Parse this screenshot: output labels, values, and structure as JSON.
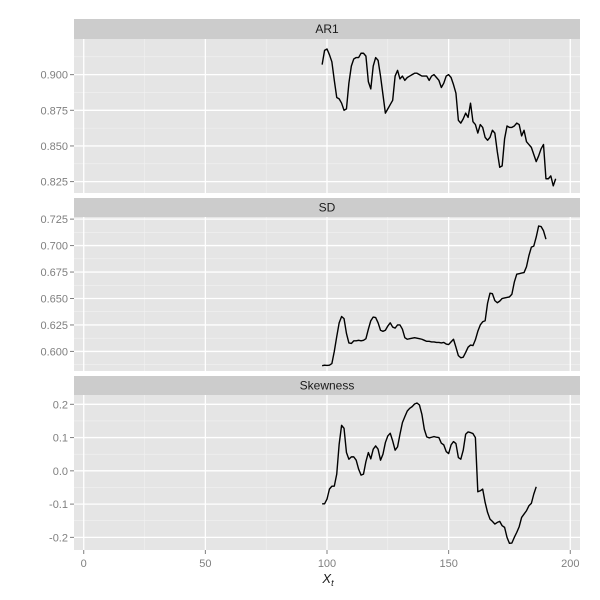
{
  "chart_data": {
    "type": "line",
    "xlabel": "X",
    "xlabel_sub": "t",
    "ylabel": "",
    "xlim": [
      -4,
      204
    ],
    "x_ticks": [
      0,
      50,
      100,
      150,
      200
    ],
    "x_tick_labels": [
      "0",
      "50",
      "100",
      "150",
      "200"
    ],
    "grid": true,
    "facets": [
      {
        "title": "AR1",
        "ylim": [
          0.817,
          0.925
        ],
        "y_ticks": [
          0.825,
          0.85,
          0.875,
          0.9
        ],
        "y_tick_labels": [
          "0.825",
          "0.850",
          "0.875",
          "0.900"
        ],
        "points": [
          [
            98,
            0.907
          ],
          [
            99,
            0.917
          ],
          [
            100,
            0.918
          ],
          [
            101,
            0.914
          ],
          [
            102,
            0.909
          ],
          [
            103,
            0.896
          ],
          [
            104,
            0.884
          ],
          [
            105,
            0.883
          ],
          [
            106,
            0.88
          ],
          [
            107,
            0.875
          ],
          [
            108,
            0.876
          ],
          [
            109,
            0.894
          ],
          [
            110,
            0.906
          ],
          [
            111,
            0.911
          ],
          [
            112,
            0.912
          ],
          [
            113,
            0.912
          ],
          [
            114,
            0.915
          ],
          [
            115,
            0.915
          ],
          [
            116,
            0.913
          ],
          [
            117,
            0.895
          ],
          [
            118,
            0.89
          ],
          [
            119,
            0.906
          ],
          [
            120,
            0.912
          ],
          [
            121,
            0.91
          ],
          [
            122,
            0.899
          ],
          [
            123,
            0.886
          ],
          [
            124,
            0.873
          ],
          [
            125,
            0.876
          ],
          [
            126,
            0.879
          ],
          [
            127,
            0.882
          ],
          [
            128,
            0.899
          ],
          [
            129,
            0.903
          ],
          [
            130,
            0.897
          ],
          [
            131,
            0.899
          ],
          [
            132,
            0.896
          ],
          [
            133,
            0.898
          ],
          [
            134,
            0.899
          ],
          [
            135,
            0.9
          ],
          [
            136,
            0.901
          ],
          [
            137,
            0.901
          ],
          [
            138,
            0.9
          ],
          [
            139,
            0.899
          ],
          [
            140,
            0.899
          ],
          [
            141,
            0.899
          ],
          [
            142,
            0.896
          ],
          [
            143,
            0.899
          ],
          [
            144,
            0.9
          ],
          [
            145,
            0.898
          ],
          [
            146,
            0.896
          ],
          [
            147,
            0.891
          ],
          [
            148,
            0.894
          ],
          [
            149,
            0.899
          ],
          [
            150,
            0.9
          ],
          [
            151,
            0.898
          ],
          [
            152,
            0.893
          ],
          [
            153,
            0.887
          ],
          [
            154,
            0.868
          ],
          [
            155,
            0.866
          ],
          [
            156,
            0.869
          ],
          [
            157,
            0.873
          ],
          [
            158,
            0.87
          ],
          [
            159,
            0.88
          ],
          [
            160,
            0.867
          ],
          [
            161,
            0.865
          ],
          [
            162,
            0.859
          ],
          [
            163,
            0.865
          ],
          [
            164,
            0.863
          ],
          [
            165,
            0.856
          ],
          [
            166,
            0.854
          ],
          [
            167,
            0.856
          ],
          [
            168,
            0.861
          ],
          [
            169,
            0.859
          ],
          [
            170,
            0.846
          ],
          [
            171,
            0.835
          ],
          [
            172,
            0.836
          ],
          [
            173,
            0.855
          ],
          [
            174,
            0.864
          ],
          [
            175,
            0.863
          ],
          [
            176,
            0.863
          ],
          [
            177,
            0.864
          ],
          [
            178,
            0.866
          ],
          [
            179,
            0.865
          ],
          [
            180,
            0.857
          ],
          [
            181,
            0.861
          ],
          [
            182,
            0.853
          ],
          [
            183,
            0.851
          ],
          [
            184,
            0.849
          ],
          [
            185,
            0.844
          ],
          [
            186,
            0.839
          ],
          [
            187,
            0.843
          ],
          [
            188,
            0.848
          ],
          [
            189,
            0.851
          ],
          [
            190,
            0.827
          ],
          [
            191,
            0.827
          ],
          [
            192,
            0.829
          ],
          [
            193,
            0.822
          ],
          [
            194,
            0.827
          ]
        ]
      },
      {
        "title": "SD",
        "ylim": [
          0.5815,
          0.727
        ],
        "y_ticks": [
          0.6,
          0.625,
          0.65,
          0.675,
          0.7,
          0.725
        ],
        "y_tick_labels": [
          "0.600",
          "0.625",
          "0.650",
          "0.675",
          "0.700",
          "0.725"
        ],
        "points": [
          [
            98,
            0.5865
          ],
          [
            99,
            0.587
          ],
          [
            100,
            0.5868
          ],
          [
            101,
            0.587
          ],
          [
            102,
            0.5885
          ],
          [
            103,
            0.6
          ],
          [
            104,
            0.614
          ],
          [
            105,
            0.627
          ],
          [
            106,
            0.633
          ],
          [
            107,
            0.631
          ],
          [
            108,
            0.617
          ],
          [
            109,
            0.608
          ],
          [
            110,
            0.6075
          ],
          [
            111,
            0.61
          ],
          [
            112,
            0.61
          ],
          [
            113,
            0.6105
          ],
          [
            114,
            0.61
          ],
          [
            115,
            0.6105
          ],
          [
            116,
            0.612
          ],
          [
            117,
            0.621
          ],
          [
            118,
            0.629
          ],
          [
            119,
            0.6325
          ],
          [
            120,
            0.632
          ],
          [
            121,
            0.627
          ],
          [
            122,
            0.62
          ],
          [
            123,
            0.619
          ],
          [
            124,
            0.62
          ],
          [
            125,
            0.624
          ],
          [
            126,
            0.627
          ],
          [
            127,
            0.623
          ],
          [
            128,
            0.622
          ],
          [
            129,
            0.625
          ],
          [
            130,
            0.625
          ],
          [
            131,
            0.621
          ],
          [
            132,
            0.613
          ],
          [
            133,
            0.6115
          ],
          [
            134,
            0.612
          ],
          [
            135,
            0.6125
          ],
          [
            136,
            0.613
          ],
          [
            137,
            0.6125
          ],
          [
            138,
            0.612
          ],
          [
            139,
            0.6115
          ],
          [
            140,
            0.6105
          ],
          [
            141,
            0.6095
          ],
          [
            142,
            0.6095
          ],
          [
            143,
            0.609
          ],
          [
            144,
            0.609
          ],
          [
            145,
            0.6085
          ],
          [
            146,
            0.6085
          ],
          [
            147,
            0.608
          ],
          [
            148,
            0.6085
          ],
          [
            149,
            0.607
          ],
          [
            150,
            0.6065
          ],
          [
            151,
            0.609
          ],
          [
            152,
            0.6115
          ],
          [
            153,
            0.604
          ],
          [
            154,
            0.596
          ],
          [
            155,
            0.594
          ],
          [
            156,
            0.5945
          ],
          [
            157,
            0.599
          ],
          [
            158,
            0.604
          ],
          [
            159,
            0.606
          ],
          [
            160,
            0.6055
          ],
          [
            161,
            0.611
          ],
          [
            162,
            0.619
          ],
          [
            163,
            0.625
          ],
          [
            164,
            0.628
          ],
          [
            165,
            0.629
          ],
          [
            166,
            0.6455
          ],
          [
            167,
            0.655
          ],
          [
            168,
            0.6545
          ],
          [
            169,
            0.648
          ],
          [
            170,
            0.646
          ],
          [
            171,
            0.6475
          ],
          [
            172,
            0.65
          ],
          [
            173,
            0.6505
          ],
          [
            174,
            0.651
          ],
          [
            175,
            0.6515
          ],
          [
            176,
            0.654
          ],
          [
            177,
            0.6655
          ],
          [
            178,
            0.673
          ],
          [
            179,
            0.6735
          ],
          [
            180,
            0.674
          ],
          [
            181,
            0.6745
          ],
          [
            182,
            0.68
          ],
          [
            183,
            0.6905
          ],
          [
            184,
            0.6985
          ],
          [
            185,
            0.6995
          ],
          [
            186,
            0.708
          ],
          [
            187,
            0.7185
          ],
          [
            188,
            0.718
          ],
          [
            189,
            0.714
          ],
          [
            190,
            0.706
          ]
        ]
      },
      {
        "title": "Skewness",
        "ylim": [
          -0.238,
          0.228
        ],
        "y_ticks": [
          -0.2,
          -0.1,
          0.0,
          0.1,
          0.2
        ],
        "y_tick_labels": [
          "-0.2",
          "-0.1",
          "0.0",
          "0.1",
          "0.2"
        ],
        "points": [
          [
            98,
            -0.099
          ],
          [
            99,
            -0.099
          ],
          [
            100,
            -0.085
          ],
          [
            101,
            -0.055
          ],
          [
            102,
            -0.046
          ],
          [
            103,
            -0.046
          ],
          [
            104,
            -0.01
          ],
          [
            105,
            0.08
          ],
          [
            106,
            0.137
          ],
          [
            107,
            0.128
          ],
          [
            108,
            0.055
          ],
          [
            109,
            0.035
          ],
          [
            110,
            0.042
          ],
          [
            111,
            0.042
          ],
          [
            112,
            0.032
          ],
          [
            113,
            0.005
          ],
          [
            114,
            -0.013
          ],
          [
            115,
            -0.01
          ],
          [
            116,
            0.028
          ],
          [
            117,
            0.055
          ],
          [
            118,
            0.036
          ],
          [
            119,
            0.065
          ],
          [
            120,
            0.075
          ],
          [
            121,
            0.065
          ],
          [
            122,
            0.032
          ],
          [
            123,
            0.05
          ],
          [
            124,
            0.085
          ],
          [
            125,
            0.105
          ],
          [
            126,
            0.113
          ],
          [
            127,
            0.09
          ],
          [
            128,
            0.062
          ],
          [
            129,
            0.072
          ],
          [
            130,
            0.11
          ],
          [
            131,
            0.145
          ],
          [
            132,
            0.163
          ],
          [
            133,
            0.18
          ],
          [
            134,
            0.188
          ],
          [
            135,
            0.193
          ],
          [
            136,
            0.201
          ],
          [
            137,
            0.204
          ],
          [
            138,
            0.198
          ],
          [
            139,
            0.17
          ],
          [
            140,
            0.125
          ],
          [
            141,
            0.102
          ],
          [
            142,
            0.099
          ],
          [
            143,
            0.101
          ],
          [
            144,
            0.103
          ],
          [
            145,
            0.101
          ],
          [
            146,
            0.1
          ],
          [
            147,
            0.083
          ],
          [
            148,
            0.078
          ],
          [
            149,
            0.058
          ],
          [
            150,
            0.052
          ],
          [
            151,
            0.078
          ],
          [
            152,
            0.088
          ],
          [
            153,
            0.082
          ],
          [
            154,
            0.04
          ],
          [
            155,
            0.035
          ],
          [
            156,
            0.062
          ],
          [
            157,
            0.11
          ],
          [
            158,
            0.117
          ],
          [
            159,
            0.115
          ],
          [
            160,
            0.112
          ],
          [
            161,
            0.1
          ],
          [
            162,
            -0.063
          ],
          [
            163,
            -0.06
          ],
          [
            164,
            -0.055
          ],
          [
            165,
            -0.095
          ],
          [
            166,
            -0.125
          ],
          [
            167,
            -0.145
          ],
          [
            168,
            -0.152
          ],
          [
            169,
            -0.16
          ],
          [
            170,
            -0.155
          ],
          [
            171,
            -0.152
          ],
          [
            172,
            -0.165
          ],
          [
            173,
            -0.17
          ],
          [
            174,
            -0.2
          ],
          [
            175,
            -0.218
          ],
          [
            176,
            -0.217
          ],
          [
            177,
            -0.2
          ],
          [
            178,
            -0.185
          ],
          [
            179,
            -0.168
          ],
          [
            180,
            -0.14
          ],
          [
            181,
            -0.13
          ],
          [
            182,
            -0.12
          ],
          [
            183,
            -0.105
          ],
          [
            184,
            -0.098
          ],
          [
            185,
            -0.07
          ],
          [
            186,
            -0.048
          ]
        ]
      }
    ]
  }
}
